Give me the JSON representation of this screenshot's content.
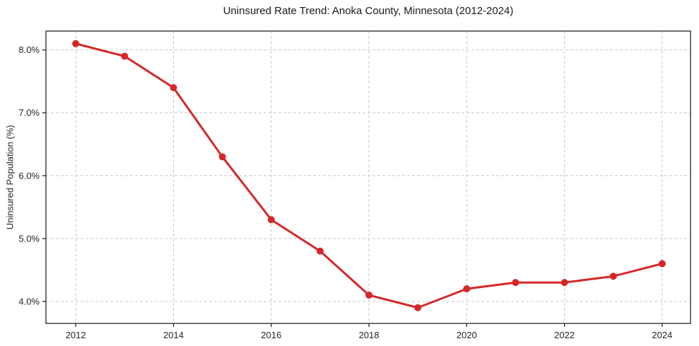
{
  "chart_data": {
    "type": "line",
    "title": "Uninsured Rate Trend: Anoka County, Minnesota (2012-2024)",
    "xlabel": "",
    "ylabel": "Uninsured Population (%)",
    "x": [
      2012,
      2013,
      2014,
      2015,
      2016,
      2017,
      2018,
      2019,
      2020,
      2021,
      2022,
      2023,
      2024
    ],
    "series": [
      {
        "name": "Uninsured Rate",
        "values": [
          8.1,
          7.9,
          7.4,
          6.3,
          5.3,
          4.8,
          4.1,
          3.9,
          4.2,
          4.3,
          4.3,
          4.4,
          4.6
        ]
      }
    ],
    "x_ticks": [
      2012,
      2014,
      2016,
      2018,
      2020,
      2022,
      2024
    ],
    "x_tick_labels": [
      "2012",
      "2014",
      "2016",
      "2018",
      "2020",
      "2022",
      "2024"
    ],
    "y_ticks": [
      4,
      5,
      6,
      7,
      8
    ],
    "y_tick_labels": [
      "4.0%",
      "5.0%",
      "6.0%",
      "7.0%",
      "8.0%"
    ],
    "xlim": [
      2011.39,
      2024.58
    ],
    "ylim": [
      3.65,
      8.3
    ],
    "grid": true,
    "legend": "none",
    "colors": {
      "line": "#d62728",
      "marker": "#d62728",
      "grid": "#c9c9c9",
      "axis": "#262626",
      "text": "#262626",
      "background": "#ffffff"
    }
  }
}
